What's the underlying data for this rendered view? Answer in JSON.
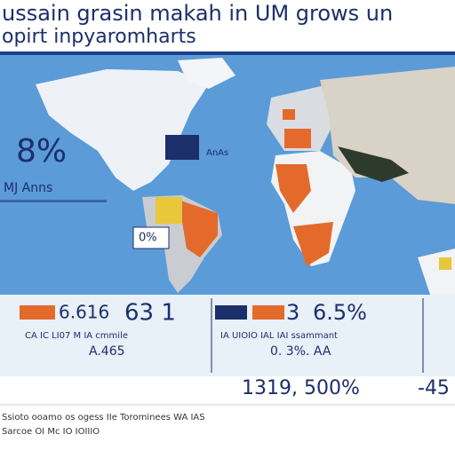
{
  "header": {
    "title": "ussain grasin makah in UM grows un",
    "subtitle": "opirt inpyaromharts"
  },
  "map": {
    "big_stat": "8%",
    "big_stat_caption": "MJ Anns",
    "box_label": "AnAs",
    "sa_label": "0%"
  },
  "stats": [
    {
      "value": "6.616",
      "value2": "63 1",
      "caption": "CA IC LI07 M IA cmmile",
      "note": "A.465"
    },
    {
      "value": "3",
      "value2": "6.5%",
      "caption": "IA UIOIO IAL IAI ssammant",
      "note": "0. 3%. AA"
    }
  ],
  "totals": [
    "1319, 500%",
    "-45"
  ],
  "footer": [
    "Ssioto ooamo os ogess IIe Torominees WA IAS",
    "Sarcoe OI Mc IO IOIIIO"
  ]
}
